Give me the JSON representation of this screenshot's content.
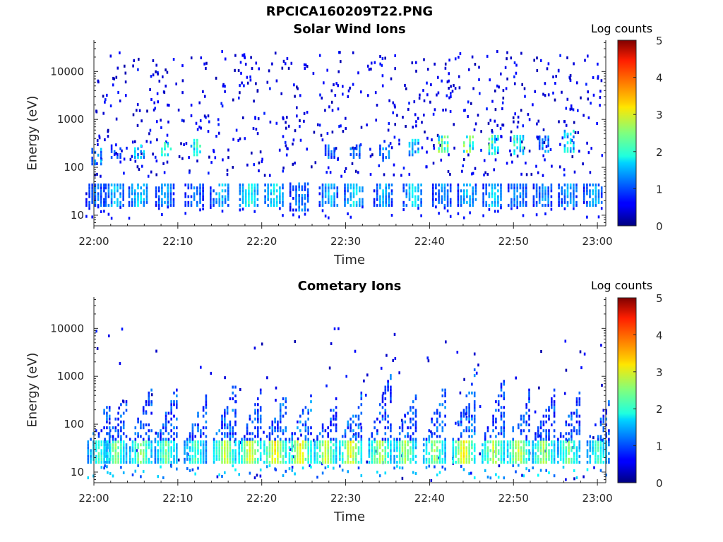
{
  "figure": {
    "file_title": "RPCICA160209T22.PNG",
    "colorbar_label": "Log counts"
  },
  "chart_data": [
    {
      "type": "heatmap",
      "title": "Solar Wind Ions",
      "xlabel": "Time",
      "ylabel": "Energy (eV)",
      "x_ticks": [
        "22:00",
        "22:10",
        "22:20",
        "22:30",
        "22:40",
        "22:50",
        "23:00"
      ],
      "xlim": [
        "22:00",
        "23:01"
      ],
      "y_scale": "log",
      "y_ticks": [
        10,
        100,
        1000,
        10000
      ],
      "ylim": [
        6,
        45000
      ],
      "colorbar": {
        "label": "Log counts",
        "range": [
          0,
          5
        ],
        "ticks": [
          0,
          1,
          2,
          3,
          4,
          5
        ],
        "colormap": "jet"
      },
      "bursts": [
        {
          "t_min": 0.2,
          "low_e": [
            15,
            45
          ],
          "low_level": 1.1,
          "high_e": [
            110,
            250
          ],
          "high_level": 1.4
        },
        {
          "t_min": 2.5,
          "low_e": [
            15,
            45
          ],
          "low_level": 1.5,
          "high_e": [
            150,
            300
          ],
          "high_level": 1.0
        },
        {
          "t_min": 5.3,
          "low_e": [
            15,
            45
          ],
          "low_level": 1.6,
          "high_e": [
            150,
            300
          ],
          "high_level": 1.6
        },
        {
          "t_min": 8.5,
          "low_e": [
            15,
            45
          ],
          "low_level": 1.3,
          "high_e": [
            170,
            320
          ],
          "high_level": 1.9
        },
        {
          "t_min": 12.0,
          "low_e": [
            15,
            45
          ],
          "low_level": 1.2,
          "high_e": [
            170,
            380
          ],
          "high_level": 2.1
        },
        {
          "t_min": 15.0,
          "low_e": [
            15,
            45
          ],
          "low_level": 1.5,
          "high_e": [
            0,
            0
          ],
          "high_level": 0
        },
        {
          "t_min": 18.5,
          "low_e": [
            15,
            45
          ],
          "low_level": 1.9,
          "high_e": [
            0,
            0
          ],
          "high_level": 0
        },
        {
          "t_min": 21.5,
          "low_e": [
            15,
            45
          ],
          "low_level": 1.8,
          "high_e": [
            0,
            0
          ],
          "high_level": 0
        },
        {
          "t_min": 24.5,
          "low_e": [
            12,
            45
          ],
          "low_level": 1.2,
          "high_e": [
            0,
            0
          ],
          "high_level": 0
        },
        {
          "t_min": 28.0,
          "low_e": [
            15,
            45
          ],
          "low_level": 1.5,
          "high_e": [
            150,
            300
          ],
          "high_level": 1.2
        },
        {
          "t_min": 31.0,
          "low_e": [
            15,
            45
          ],
          "low_level": 1.7,
          "high_e": [
            150,
            300
          ],
          "high_level": 1.2
        },
        {
          "t_min": 34.5,
          "low_e": [
            15,
            45
          ],
          "low_level": 1.4,
          "high_e": [
            130,
            300
          ],
          "high_level": 1.3
        },
        {
          "t_min": 38.0,
          "low_e": [
            15,
            45
          ],
          "low_level": 1.7,
          "high_e": [
            170,
            380
          ],
          "high_level": 1.7
        },
        {
          "t_min": 41.5,
          "low_e": [
            15,
            45
          ],
          "low_level": 1.3,
          "high_e": [
            200,
            450
          ],
          "high_level": 2.4
        },
        {
          "t_min": 44.5,
          "low_e": [
            15,
            45
          ],
          "low_level": 1.5,
          "high_e": [
            200,
            450
          ],
          "high_level": 2.5
        },
        {
          "t_min": 47.5,
          "low_e": [
            15,
            45
          ],
          "low_level": 1.6,
          "high_e": [
            180,
            450
          ],
          "high_level": 2.2
        },
        {
          "t_min": 50.5,
          "low_e": [
            15,
            45
          ],
          "low_level": 1.3,
          "high_e": [
            180,
            450
          ],
          "high_level": 2.1
        },
        {
          "t_min": 53.5,
          "low_e": [
            15,
            45
          ],
          "low_level": 1.3,
          "high_e": [
            200,
            450
          ],
          "high_level": 1.4
        },
        {
          "t_min": 56.5,
          "low_e": [
            15,
            45
          ],
          "low_level": 1.4,
          "high_e": [
            200,
            600
          ],
          "high_level": 1.8
        },
        {
          "t_min": 59.5,
          "low_e": [
            15,
            45
          ],
          "low_level": 1.4,
          "high_e": [
            0,
            0
          ],
          "high_level": 0
        }
      ],
      "background_speckle_level": 0.3
    },
    {
      "type": "heatmap",
      "title": "Cometary Ions",
      "xlabel": "Time",
      "ylabel": "Energy (eV)",
      "x_ticks": [
        "22:00",
        "22:10",
        "22:20",
        "22:30",
        "22:40",
        "22:50",
        "23:00"
      ],
      "xlim": [
        "22:00",
        "23:01"
      ],
      "y_scale": "log",
      "y_ticks": [
        10,
        100,
        1000,
        10000
      ],
      "ylim": [
        6,
        45000
      ],
      "colorbar": {
        "label": "Log counts",
        "range": [
          0,
          5
        ],
        "ticks": [
          0,
          1,
          2,
          3,
          4,
          5
        ],
        "colormap": "jet"
      },
      "bursts": [
        {
          "t_min": 0.5,
          "core_e": [
            15,
            40
          ],
          "core_level": 2.0,
          "tail_top_e": 300,
          "tail_level": 0.9
        },
        {
          "t_min": 2.5,
          "core_e": [
            15,
            40
          ],
          "core_level": 2.3,
          "tail_top_e": 500,
          "tail_level": 0.9
        },
        {
          "t_min": 5.5,
          "core_e": [
            15,
            40
          ],
          "core_level": 2.4,
          "tail_top_e": 700,
          "tail_level": 0.9
        },
        {
          "t_min": 8.5,
          "core_e": [
            15,
            40
          ],
          "core_level": 2.2,
          "tail_top_e": 600,
          "tail_level": 0.9
        },
        {
          "t_min": 12.0,
          "core_e": [
            15,
            40
          ],
          "core_level": 2.0,
          "tail_top_e": 400,
          "tail_level": 0.9
        },
        {
          "t_min": 15.5,
          "core_e": [
            15,
            40
          ],
          "core_level": 2.7,
          "tail_top_e": 1000,
          "tail_level": 1.0
        },
        {
          "t_min": 18.5,
          "core_e": [
            15,
            40
          ],
          "core_level": 2.8,
          "tail_top_e": 500,
          "tail_level": 0.9
        },
        {
          "t_min": 21.5,
          "core_e": [
            15,
            40
          ],
          "core_level": 2.9,
          "tail_top_e": 500,
          "tail_level": 1.0
        },
        {
          "t_min": 24.5,
          "core_e": [
            15,
            40
          ],
          "core_level": 2.9,
          "tail_top_e": 500,
          "tail_level": 1.0
        },
        {
          "t_min": 27.5,
          "core_e": [
            15,
            40
          ],
          "core_level": 2.6,
          "tail_top_e": 400,
          "tail_level": 0.9
        },
        {
          "t_min": 30.5,
          "core_e": [
            15,
            40
          ],
          "core_level": 2.8,
          "tail_top_e": 500,
          "tail_level": 1.0
        },
        {
          "t_min": 34.0,
          "core_e": [
            15,
            40
          ],
          "core_level": 2.6,
          "tail_top_e": 1500,
          "tail_level": 0.9
        },
        {
          "t_min": 37.0,
          "core_e": [
            15,
            40
          ],
          "core_level": 2.5,
          "tail_top_e": 500,
          "tail_level": 0.9
        },
        {
          "t_min": 40.5,
          "core_e": [
            15,
            40
          ],
          "core_level": 2.4,
          "tail_top_e": 1000,
          "tail_level": 1.0
        },
        {
          "t_min": 44.0,
          "core_e": [
            15,
            40
          ],
          "core_level": 2.9,
          "tail_top_e": 1500,
          "tail_level": 1.0
        },
        {
          "t_min": 47.5,
          "core_e": [
            15,
            40
          ],
          "core_level": 2.6,
          "tail_top_e": 1000,
          "tail_level": 0.9
        },
        {
          "t_min": 50.5,
          "core_e": [
            15,
            40
          ],
          "core_level": 2.7,
          "tail_top_e": 500,
          "tail_level": 0.9
        },
        {
          "t_min": 53.5,
          "core_e": [
            15,
            40
          ],
          "core_level": 2.5,
          "tail_top_e": 500,
          "tail_level": 0.9
        },
        {
          "t_min": 56.5,
          "core_e": [
            15,
            40
          ],
          "core_level": 2.3,
          "tail_top_e": 500,
          "tail_level": 0.9
        },
        {
          "t_min": 60.0,
          "core_e": [
            15,
            40
          ],
          "core_level": 2.0,
          "tail_top_e": 300,
          "tail_level": 0.9
        }
      ],
      "background_speckle_level": 0.2
    }
  ]
}
